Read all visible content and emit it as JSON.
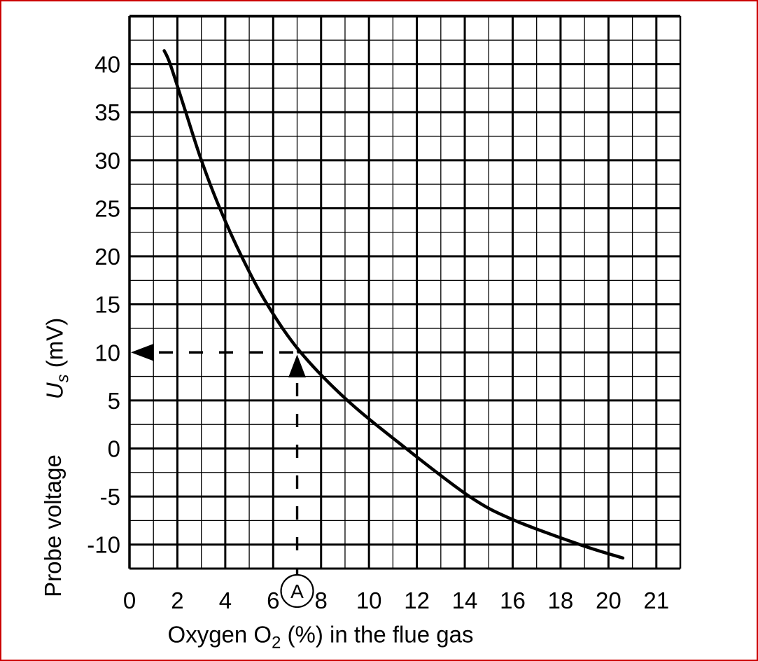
{
  "frame": {
    "border_color": "#cc0000",
    "background": "#ffffff",
    "ink_color": "#000000"
  },
  "chart_data": {
    "type": "line",
    "title": "",
    "xlabel_prefix": "Oxygen O",
    "xlabel_sub": "2",
    "xlabel_suffix": " (%) in the flue gas",
    "xlabel_full": "Oxygen O2 (%) in the flue gas",
    "ylabel_symbol": "U",
    "ylabel_symbol_sub": "s",
    "ylabel_unit": " (mV)",
    "ylabel_text": "Probe voltage",
    "ylabel_full": "Probe voltage  Us (mV)",
    "x_tick_labels": [
      "0",
      "2",
      "4",
      "6",
      "8",
      "10",
      "12",
      "14",
      "16",
      "18",
      "20",
      "21"
    ],
    "x_tick_cells": [
      0,
      2,
      4,
      6,
      8,
      10,
      12,
      14,
      16,
      18,
      20,
      22
    ],
    "y_tick_labels": [
      "40",
      "35",
      "30",
      "25",
      "20",
      "15",
      "10",
      "5",
      "0",
      "-5",
      "-10"
    ],
    "y_tick_values": [
      40,
      35,
      30,
      25,
      20,
      15,
      10,
      5,
      0,
      -5,
      -10
    ],
    "ylim_mv": [
      -12.5,
      45
    ],
    "y_minor_step_mv": 2.5,
    "y_major_step_mv": 5,
    "x_minor_step_pct": 1,
    "x_major_step_pct": 2,
    "grid": "major and minor, square cells, 23 columns x 23 rows",
    "x_scale_hint": "right of 20 % each grid cell equals 0.5 %, label 21 sits two cells after 20",
    "series": [
      {
        "name": "probe voltage curve",
        "points_pct_mv": [
          [
            1.45,
            41.4
          ],
          [
            1.7,
            40
          ],
          [
            2.35,
            35
          ],
          [
            3.0,
            30
          ],
          [
            3.77,
            25
          ],
          [
            4.68,
            20
          ],
          [
            5.75,
            15
          ],
          [
            7.15,
            10
          ],
          [
            9.1,
            5
          ],
          [
            11.55,
            0
          ],
          [
            14.2,
            -5
          ],
          [
            16.0,
            -7.4
          ],
          [
            18.8,
            -10
          ],
          [
            20.3,
            -11.4
          ]
        ]
      }
    ],
    "annotation": {
      "label": "A",
      "o2_pct": 7,
      "voltage_mv": 10
    }
  }
}
